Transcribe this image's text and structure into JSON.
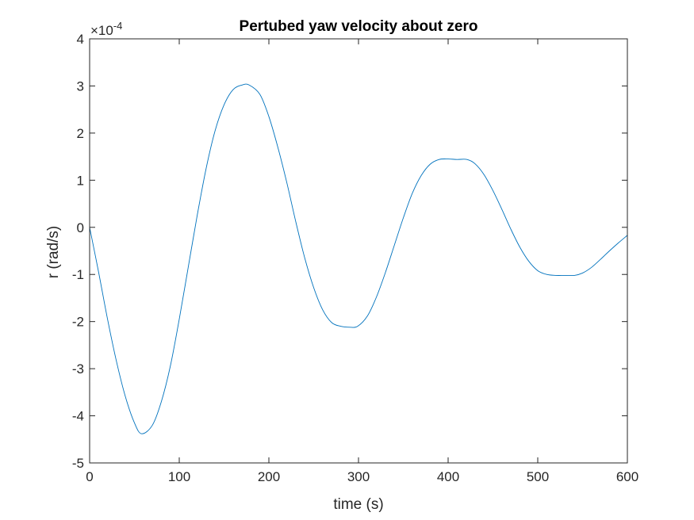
{
  "chart_data": {
    "type": "line",
    "title": "Pertubed yaw velocity about zero",
    "xlabel": "time (s)",
    "ylabel": "r (rad/s)",
    "xlim": [
      0,
      600
    ],
    "ylim": [
      -5,
      4
    ],
    "y_exponent_label": "×10",
    "y_exponent_power": "-4",
    "y_scale_factor": 0.0001,
    "grid": false,
    "x_ticks": [
      0,
      100,
      200,
      300,
      400,
      500,
      600
    ],
    "y_ticks": [
      -5,
      -4,
      -3,
      -2,
      -1,
      0,
      1,
      2,
      3,
      4
    ],
    "x_tick_labels": [
      "0",
      "100",
      "200",
      "300",
      "400",
      "500",
      "600"
    ],
    "y_tick_labels": [
      "-5",
      "-4",
      "-3",
      "-2",
      "-1",
      "0",
      "1",
      "2",
      "3",
      "4"
    ],
    "series": [
      {
        "color": "#0072bd",
        "x": [
          0,
          10,
          20,
          30,
          40,
          50,
          58,
          70,
          80,
          90,
          100,
          110,
          120,
          130,
          140,
          150,
          160,
          170,
          178,
          190,
          200,
          210,
          220,
          230,
          240,
          250,
          260,
          270,
          280,
          290,
          299,
          310,
          320,
          330,
          340,
          350,
          360,
          370,
          380,
          390,
          400,
          410,
          421,
          430,
          440,
          450,
          460,
          470,
          480,
          490,
          500,
          510,
          520,
          530,
          541,
          550,
          560,
          570,
          580,
          590,
          600
        ],
        "y": [
          0.0,
          -0.95,
          -1.95,
          -2.85,
          -3.6,
          -4.15,
          -4.38,
          -4.2,
          -3.7,
          -2.95,
          -1.95,
          -0.85,
          0.25,
          1.25,
          2.05,
          2.6,
          2.92,
          3.02,
          3.02,
          2.82,
          2.35,
          1.7,
          0.95,
          0.12,
          -0.65,
          -1.28,
          -1.75,
          -2.02,
          -2.1,
          -2.12,
          -2.1,
          -1.88,
          -1.48,
          -0.96,
          -0.38,
          0.2,
          0.72,
          1.1,
          1.34,
          1.44,
          1.45,
          1.44,
          1.44,
          1.35,
          1.12,
          0.78,
          0.38,
          -0.04,
          -0.42,
          -0.72,
          -0.92,
          -1.0,
          -1.02,
          -1.02,
          -1.02,
          -0.97,
          -0.85,
          -0.68,
          -0.5,
          -0.33,
          -0.17
        ]
      }
    ]
  }
}
